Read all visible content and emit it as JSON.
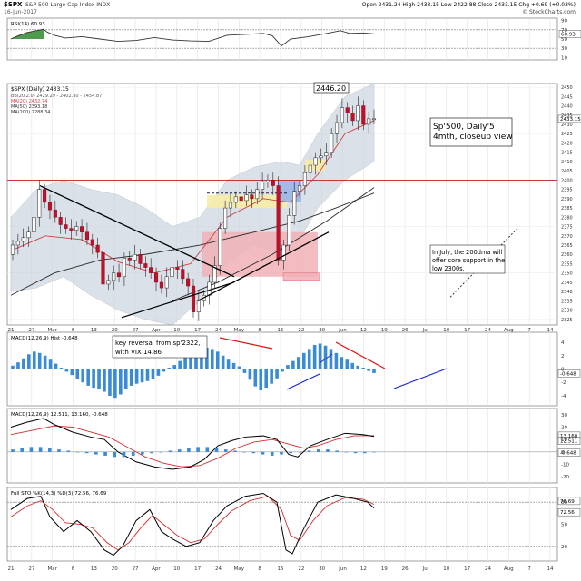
{
  "header": {
    "symbol": "$SPX",
    "name": "S&P 500 Large Cap Index",
    "exchange": "INDX",
    "date": "16-Jun-2017",
    "ohlc": "Open 2431.24 High 2433.15 Low 2422.88 Close 2433.15 Chg +0.69 (+0.03%)",
    "credit": "© StockCharts.com"
  },
  "colors": {
    "price": "#c0112b",
    "up_candle": "#ffffff",
    "down_candle": "#c0112b",
    "ma20": "#d04040",
    "ma50": "#2a2a2a",
    "ma200": "#2a2a2a",
    "bb_fill": "#c9d2dc",
    "rsi_fill": "#2f8a2f",
    "macd_hist": "#3a8bd6",
    "signal": "#d03030",
    "annot_red": "#e01010",
    "annot_blue": "#1a22d8",
    "box_red": "#f0b0b6",
    "box_yellow": "#f6eca8",
    "box_blue": "#9bb6e6",
    "hline": "#c02020"
  },
  "x_axis": {
    "labels": [
      "21",
      "27",
      "Mar",
      "6",
      "13",
      "20",
      "27",
      "Apr",
      "10",
      "17",
      "24",
      "May",
      "8",
      "15",
      "22",
      "30",
      "Jun",
      "12",
      "19",
      "26",
      "Jul",
      "10",
      "17",
      "24",
      "Aug",
      "7",
      "14"
    ]
  },
  "panels": {
    "rsi": {
      "label": "RSI(14) 60.93",
      "value_tag": "60.93",
      "ticks": [
        "90",
        "70",
        "50",
        "30",
        "10"
      ]
    },
    "price": {
      "legend": {
        "title": "$SPX (Daily) 2433.15",
        "bb": "BB(20,2.0) 2429.29 - 2402.30 - 2454.87",
        "ma20": "MA(20) 2432.74",
        "ma50": "MA(50) 2393.18",
        "ma200": "MA(200) 2288.34"
      },
      "value_tag": "2433.15",
      "ticks": [
        "2450",
        "2445",
        "2440",
        "2435",
        "2430",
        "2425",
        "2420",
        "2415",
        "2410",
        "2405",
        "2400",
        "2395",
        "2390",
        "2385",
        "2380",
        "2375",
        "2370",
        "2365",
        "2360",
        "2355",
        "2350",
        "2345",
        "2340",
        "2335",
        "2330",
        "2325"
      ],
      "note_title": "Sp'500, Daily'5\n4mth, closeup view",
      "peak_label": "2446.20",
      "note_200dma": "In July, the 200dma will\noffer core support in the\nlow 2300s."
    },
    "macd1": {
      "label": "MACD(12,26,9) Hist -0.648",
      "note": "key reversal from sp'2322,\nwith VIX 14.86",
      "value_tag": "-0.648",
      "ticks": [
        "4",
        "2",
        "0",
        "-2",
        "-4"
      ]
    },
    "macd2": {
      "label": "MACD(12,26,9) 12.511, 13.160, -0.648",
      "tag_a": "13.160",
      "tag_b": "12.511",
      "tag_c": "-0.648",
      "ticks": [
        "30",
        "20",
        "10",
        "0",
        "-10",
        "-20"
      ]
    },
    "sto": {
      "label": "Full STO %K(14,3) %D(3) 72.56, 76.69",
      "tag_a": "76.69",
      "tag_b": "72.56",
      "ticks": [
        "80",
        "50",
        "20"
      ]
    }
  },
  "chart_data": {
    "type": "line",
    "title": "Sp'500, Daily'5 4mth, closeup view",
    "xlabel": "",
    "ylabel": "",
    "ylim": [
      2322,
      2452
    ],
    "series": [
      {
        "name": "$SPX (Daily)",
        "points": [
          {
            "date": "2017-02-21",
            "close": 2365
          },
          {
            "date": "2017-02-27",
            "close": 2369
          },
          {
            "date": "2017-03-01",
            "close": 2396
          },
          {
            "date": "2017-03-06",
            "close": 2375
          },
          {
            "date": "2017-03-13",
            "close": 2373
          },
          {
            "date": "2017-03-20",
            "close": 2344
          },
          {
            "date": "2017-03-27",
            "close": 2358
          },
          {
            "date": "2017-04-03",
            "close": 2357
          },
          {
            "date": "2017-04-10",
            "close": 2353
          },
          {
            "date": "2017-04-13",
            "close": 2329
          },
          {
            "date": "2017-04-19",
            "close": 2338
          },
          {
            "date": "2017-04-24",
            "close": 2374
          },
          {
            "date": "2017-05-01",
            "close": 2388
          },
          {
            "date": "2017-05-08",
            "close": 2399
          },
          {
            "date": "2017-05-16",
            "close": 2400
          },
          {
            "date": "2017-05-17",
            "close": 2357
          },
          {
            "date": "2017-05-22",
            "close": 2394
          },
          {
            "date": "2017-05-30",
            "close": 2413
          },
          {
            "date": "2017-06-02",
            "close": 2439
          },
          {
            "date": "2017-06-09",
            "close": 2432
          },
          {
            "date": "2017-06-16",
            "close": 2433
          }
        ]
      },
      {
        "name": "MA(20)",
        "points": [
          {
            "date": "2017-03-06",
            "close": 2366
          },
          {
            "date": "2017-03-20",
            "close": 2369
          },
          {
            "date": "2017-04-03",
            "close": 2359
          },
          {
            "date": "2017-04-17",
            "close": 2351
          },
          {
            "date": "2017-05-01",
            "close": 2362
          },
          {
            "date": "2017-05-15",
            "close": 2387
          },
          {
            "date": "2017-05-29",
            "close": 2393
          },
          {
            "date": "2017-06-16",
            "close": 2432
          }
        ]
      },
      {
        "name": "MA(50)",
        "points": [
          {
            "date": "2017-03-06",
            "close": 2338
          },
          {
            "date": "2017-03-20",
            "close": 2350
          },
          {
            "date": "2017-04-03",
            "close": 2357
          },
          {
            "date": "2017-04-17",
            "close": 2360
          },
          {
            "date": "2017-05-01",
            "close": 2365
          },
          {
            "date": "2017-05-15",
            "close": 2375
          },
          {
            "date": "2017-05-29",
            "close": 2382
          },
          {
            "date": "2017-06-16",
            "close": 2393
          }
        ]
      }
    ]
  }
}
